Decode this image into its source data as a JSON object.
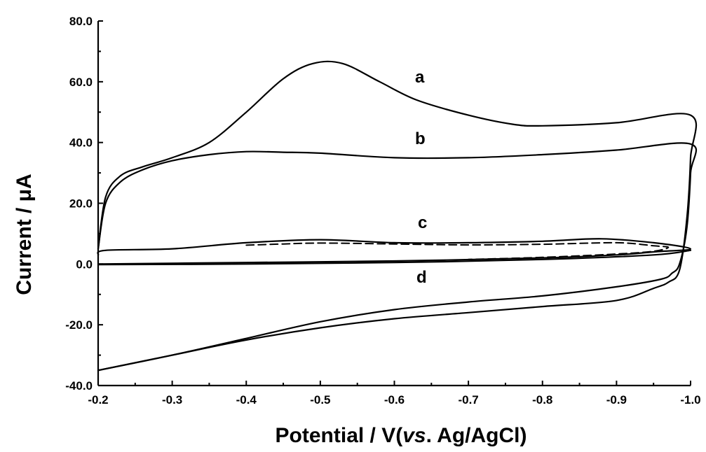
{
  "chart_data": {
    "type": "line",
    "xlabel_main": "Potential / V(",
    "xlabel_italic": "vs",
    "xlabel_tail": ". Ag/AgCl)",
    "ylabel": "Current / μA",
    "xlim": [
      -0.2,
      -1.0
    ],
    "ylim": [
      -40.0,
      80.0
    ],
    "x_ticks": [
      "-0.2",
      "-0.3",
      "-0.4",
      "-0.5",
      "-0.6",
      "-0.7",
      "-0.8",
      "-0.9",
      "-1.0"
    ],
    "y_ticks": [
      "80.0",
      "60.0",
      "40.0",
      "20.0",
      "0.0",
      "-20.0",
      "-40.0"
    ],
    "curve_labels": {
      "a": "a",
      "b": "b",
      "c": "c",
      "d": "d"
    },
    "series": [
      {
        "name": "a",
        "style": "solid",
        "points": [
          [
            -0.2,
            5
          ],
          [
            -0.21,
            22
          ],
          [
            -0.23,
            29
          ],
          [
            -0.26,
            32
          ],
          [
            -0.3,
            35
          ],
          [
            -0.35,
            40
          ],
          [
            -0.4,
            50
          ],
          [
            -0.45,
            61
          ],
          [
            -0.49,
            66
          ],
          [
            -0.53,
            66
          ],
          [
            -0.58,
            60
          ],
          [
            -0.63,
            54
          ],
          [
            -0.7,
            49
          ],
          [
            -0.76,
            46
          ],
          [
            -0.8,
            45.5
          ],
          [
            -0.9,
            46.5
          ],
          [
            -1.0,
            49
          ],
          [
            -1.0,
            35
          ],
          [
            -0.995,
            15
          ],
          [
            -0.985,
            -2
          ],
          [
            -0.97,
            -6
          ],
          [
            -0.95,
            -8
          ],
          [
            -0.9,
            -12
          ],
          [
            -0.8,
            -14
          ],
          [
            -0.7,
            -16
          ],
          [
            -0.6,
            -18
          ],
          [
            -0.5,
            -21
          ],
          [
            -0.4,
            -25
          ],
          [
            -0.3,
            -30
          ],
          [
            -0.2,
            -35
          ]
        ]
      },
      {
        "name": "b",
        "style": "solid",
        "points": [
          [
            -0.2,
            5
          ],
          [
            -0.21,
            20
          ],
          [
            -0.23,
            27
          ],
          [
            -0.26,
            31
          ],
          [
            -0.3,
            34
          ],
          [
            -0.35,
            36
          ],
          [
            -0.4,
            37
          ],
          [
            -0.45,
            36.8
          ],
          [
            -0.5,
            36.5
          ],
          [
            -0.6,
            35
          ],
          [
            -0.7,
            35
          ],
          [
            -0.8,
            36
          ],
          [
            -0.9,
            37.5
          ],
          [
            -1.0,
            39.5
          ],
          [
            -1.0,
            30
          ],
          [
            -0.995,
            12
          ],
          [
            -0.985,
            0
          ],
          [
            -0.975,
            -3
          ],
          [
            -0.96,
            -5
          ],
          [
            -0.9,
            -7.5
          ],
          [
            -0.8,
            -10.5
          ],
          [
            -0.7,
            -12.5
          ],
          [
            -0.6,
            -15
          ],
          [
            -0.5,
            -19
          ],
          [
            -0.4,
            -24.5
          ],
          [
            -0.3,
            -30
          ],
          [
            -0.2,
            -35
          ]
        ]
      },
      {
        "name": "c",
        "style": "solid",
        "points": [
          [
            -0.2,
            3
          ],
          [
            -0.21,
            4.5
          ],
          [
            -0.3,
            5
          ],
          [
            -0.4,
            7
          ],
          [
            -0.5,
            8
          ],
          [
            -0.6,
            7
          ],
          [
            -0.7,
            7
          ],
          [
            -0.8,
            7.5
          ],
          [
            -0.88,
            8.3
          ],
          [
            -0.95,
            7
          ],
          [
            -1.0,
            5
          ],
          [
            -0.95,
            4
          ],
          [
            -0.9,
            3
          ],
          [
            -0.8,
            2
          ],
          [
            -0.6,
            1
          ],
          [
            -0.4,
            0.5
          ],
          [
            -0.2,
            0
          ]
        ]
      },
      {
        "name": "c-dashed",
        "style": "dashed",
        "points": [
          [
            -0.4,
            6.2
          ],
          [
            -0.45,
            6.6
          ],
          [
            -0.5,
            6.9
          ],
          [
            -0.6,
            6.6
          ],
          [
            -0.7,
            6.3
          ],
          [
            -0.8,
            6.5
          ],
          [
            -0.9,
            7
          ],
          [
            -0.95,
            6
          ],
          [
            -0.97,
            5.5
          ],
          [
            -0.95,
            4.2
          ],
          [
            -0.9,
            3.3
          ],
          [
            -0.8,
            2.2
          ],
          [
            -0.7,
            1.5
          ]
        ]
      },
      {
        "name": "d",
        "style": "solid",
        "points": [
          [
            -0.2,
            -0.2
          ],
          [
            -0.4,
            0
          ],
          [
            -0.6,
            0.5
          ],
          [
            -0.8,
            1.5
          ],
          [
            -0.95,
            3
          ],
          [
            -1.0,
            4.5
          ]
        ]
      }
    ]
  }
}
